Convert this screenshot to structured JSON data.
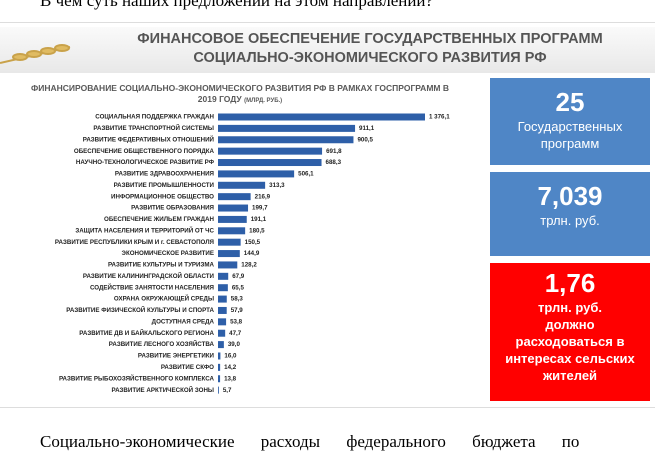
{
  "header_text": "В чем суть наших предложений на этом направлении?",
  "slide": {
    "title_lines": [
      "ФИНАНСОВОЕ ОБЕСПЕЧЕНИЕ ГОСУДАРСТВЕННЫХ ПРОГРАММ",
      "СОЦИАЛЬНО-ЭКОНОМИЧЕСКОГО РАЗВИТИЯ РФ"
    ]
  },
  "chart_data": {
    "type": "bar",
    "orientation": "horizontal",
    "title": "ФИНАНСИРОВАНИЕ СОЦИАЛЬНО-ЭКОНОМИЧЕСКОГО РАЗВИТИЯ РФ В РАМКАХ ГОСПРОГРАММ В 2019 ГОДУ",
    "subtitle": "(МЛРД. РУБ.)",
    "color": "#2e5fa8",
    "categories": [
      "СОЦИАЛЬНАЯ ПОДДЕРЖКА ГРАЖДАН",
      "РАЗВИТИЕ ТРАНСПОРТНОЙ СИСТЕМЫ",
      "РАЗВИТИЕ ФЕДЕРАТИВНЫХ ОТНОШЕНИЙ",
      "ОБЕСПЕЧЕНИЕ ОБЩЕСТВЕННОГО ПОРЯДКА",
      "НАУЧНО-ТЕХНОЛОГИЧЕСКОЕ РАЗВИТИЕ РФ",
      "РАЗВИТИЕ ЗДРАВООХРАНЕНИЯ",
      "РАЗВИТИЕ ПРОМЫШЛЕННОСТИ",
      "ИНФОРМАЦИОННОЕ ОБЩЕСТВО",
      "РАЗВИТИЕ ОБРАЗОВАНИЯ",
      "ОБЕСПЕЧЕНИЕ ЖИЛЬЕМ ГРАЖДАН",
      "ЗАЩИТА НАСЕЛЕНИЯ И ТЕРРИТОРИЙ ОТ ЧС",
      "РАЗВИТИЕ РЕСПУБЛИКИ КРЫМ И г. СЕВАСТОПОЛЯ",
      "ЭКОНОМИЧЕСКОЕ РАЗВИТИЕ",
      "РАЗВИТИЕ КУЛЬТУРЫ И ТУРИЗМА",
      "РАЗВИТИЕ КАЛИНИНГРАДСКОЙ ОБЛАСТИ",
      "СОДЕЙСТВИЕ ЗАНЯТОСТИ НАСЕЛЕНИЯ",
      "ОХРАНА ОКРУЖАЮЩЕЙ СРЕДЫ",
      "РАЗВИТИЕ ФИЗИЧЕСКОЙ КУЛЬТУРЫ И СПОРТА",
      "ДОСТУПНАЯ СРЕДА",
      "РАЗВИТИЕ ДВ И БАЙКАЛЬСКОГО РЕГИОНА",
      "РАЗВИТИЕ ЛЕСНОГО ХОЗЯЙСТВА",
      "РАЗВИТИЕ ЭНЕРГЕТИКИ",
      "РАЗВИТИЕ СКФО",
      "РАЗВИТИЕ РЫБОХОЗЯЙСТВЕННОГО КОМПЛЕКСА",
      "РАЗВИТИЕ АРКТИЧЕСКОЙ ЗОНЫ"
    ],
    "values": [
      1376.1,
      911.1,
      900.5,
      691.8,
      688.3,
      506.1,
      313.3,
      216.9,
      199.7,
      191.1,
      180.5,
      150.5,
      144.9,
      128.2,
      67.9,
      65.5,
      58.3,
      57.9,
      53.8,
      47.7,
      39.0,
      16.0,
      14.2,
      13.8,
      5.7
    ],
    "value_labels": [
      "1 376,1",
      "911,1",
      "900,5",
      "691,8",
      "688,3",
      "506,1",
      "313,3",
      "216,9",
      "199,7",
      "191,1",
      "180,5",
      "150,5",
      "144,9",
      "128,2",
      "67,9",
      "65,5",
      "58,3",
      "57,9",
      "53,8",
      "47,7",
      "39,0",
      "16,0",
      "14,2",
      "13,8",
      "5,7"
    ]
  },
  "boxes": [
    {
      "value": "25",
      "lines": [
        "Государственных",
        "программ"
      ],
      "color": "#4f86c6"
    },
    {
      "value": "7,039",
      "lines": [
        "трлн. руб."
      ],
      "color": "#4f86c6"
    },
    {
      "value": "1,76",
      "lines": [
        "трлн. руб.",
        "должно",
        "расходоваться в",
        "интересах сельских",
        "жителей"
      ],
      "color": "#ff0000"
    }
  ],
  "footer_text": "Социально-экономические расходы федерального бюджета по"
}
